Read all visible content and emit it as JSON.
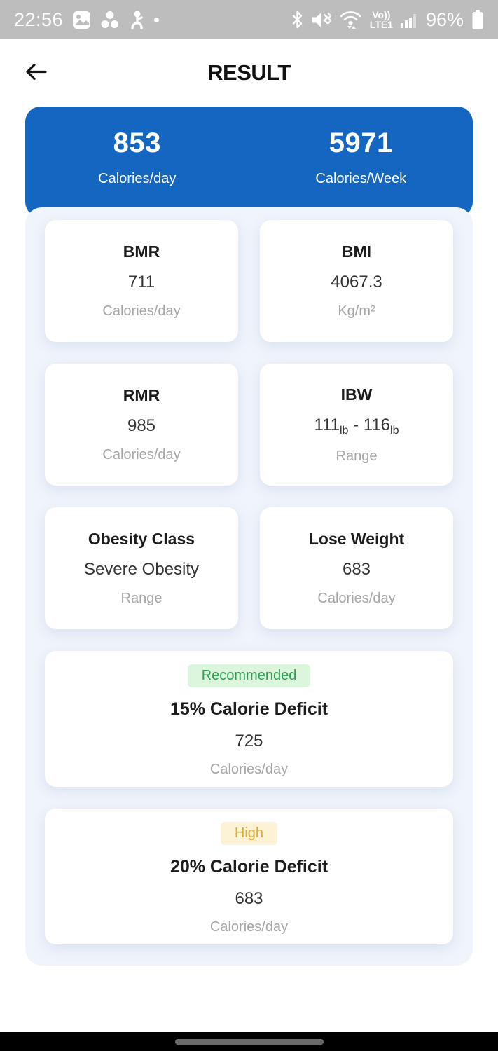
{
  "status_bar": {
    "time": "22:56",
    "battery": "96%",
    "volte_line1": "Vo))",
    "volte_line2": "LTE1",
    "left_icons": [
      "gallery-icon",
      "notification-cluster-icon",
      "person-icon",
      "notification-dot"
    ],
    "right_icons": [
      "bluetooth-icon",
      "sound-mute-vibrate-icon",
      "wifi-icon",
      "volte-indicator",
      "signal-strength-icon",
      "battery-icon"
    ]
  },
  "header": {
    "title": "RESULT",
    "back_icon": "arrow-left"
  },
  "summary": {
    "items": [
      {
        "value": "853",
        "unit": "Calories/day"
      },
      {
        "value": "5971",
        "unit": "Calories/Week"
      }
    ]
  },
  "metrics": [
    {
      "title": "BMR",
      "value": {
        "type": "text",
        "text": "711"
      },
      "unit": "Calories/day"
    },
    {
      "title": "BMI",
      "value": {
        "type": "text",
        "text": "4067.3"
      },
      "unit": "Kg/m²"
    },
    {
      "title": "RMR",
      "value": {
        "type": "text",
        "text": "985"
      },
      "unit": "Calories/day"
    },
    {
      "title": "IBW",
      "value": {
        "type": "range",
        "low": "111",
        "low_sub": "lb",
        "separator": "-",
        "high": "116",
        "high_sub": "lb"
      },
      "unit": "Range"
    },
    {
      "title": "Obesity Class",
      "value": {
        "type": "text",
        "text": "Severe Obesity"
      },
      "unit": "Range"
    },
    {
      "title": "Lose Weight",
      "value": {
        "type": "text",
        "text": "683"
      },
      "unit": "Calories/day"
    }
  ],
  "deficits": [
    {
      "badge": "Recommended",
      "badge_color": "#2fa052",
      "badge_bg": "#dcf6de",
      "title": "15% Calorie Deficit",
      "value": "725",
      "unit": "Calories/day"
    },
    {
      "badge": "High",
      "badge_color": "#dcab2f",
      "badge_bg": "#fcf3d6",
      "title": "20% Calorie Deficit",
      "value": "683",
      "unit": "Calories/day"
    }
  ],
  "colors": {
    "accent_blue": "#1566c0",
    "panel_bg": "#f0f4fb",
    "card_bg": "#ffffff",
    "unit_gray": "#a5a5a5",
    "status_bar_bg": "#bdbdbd",
    "gesture_bar_bg": "#000000",
    "home_pill": "#696969"
  }
}
